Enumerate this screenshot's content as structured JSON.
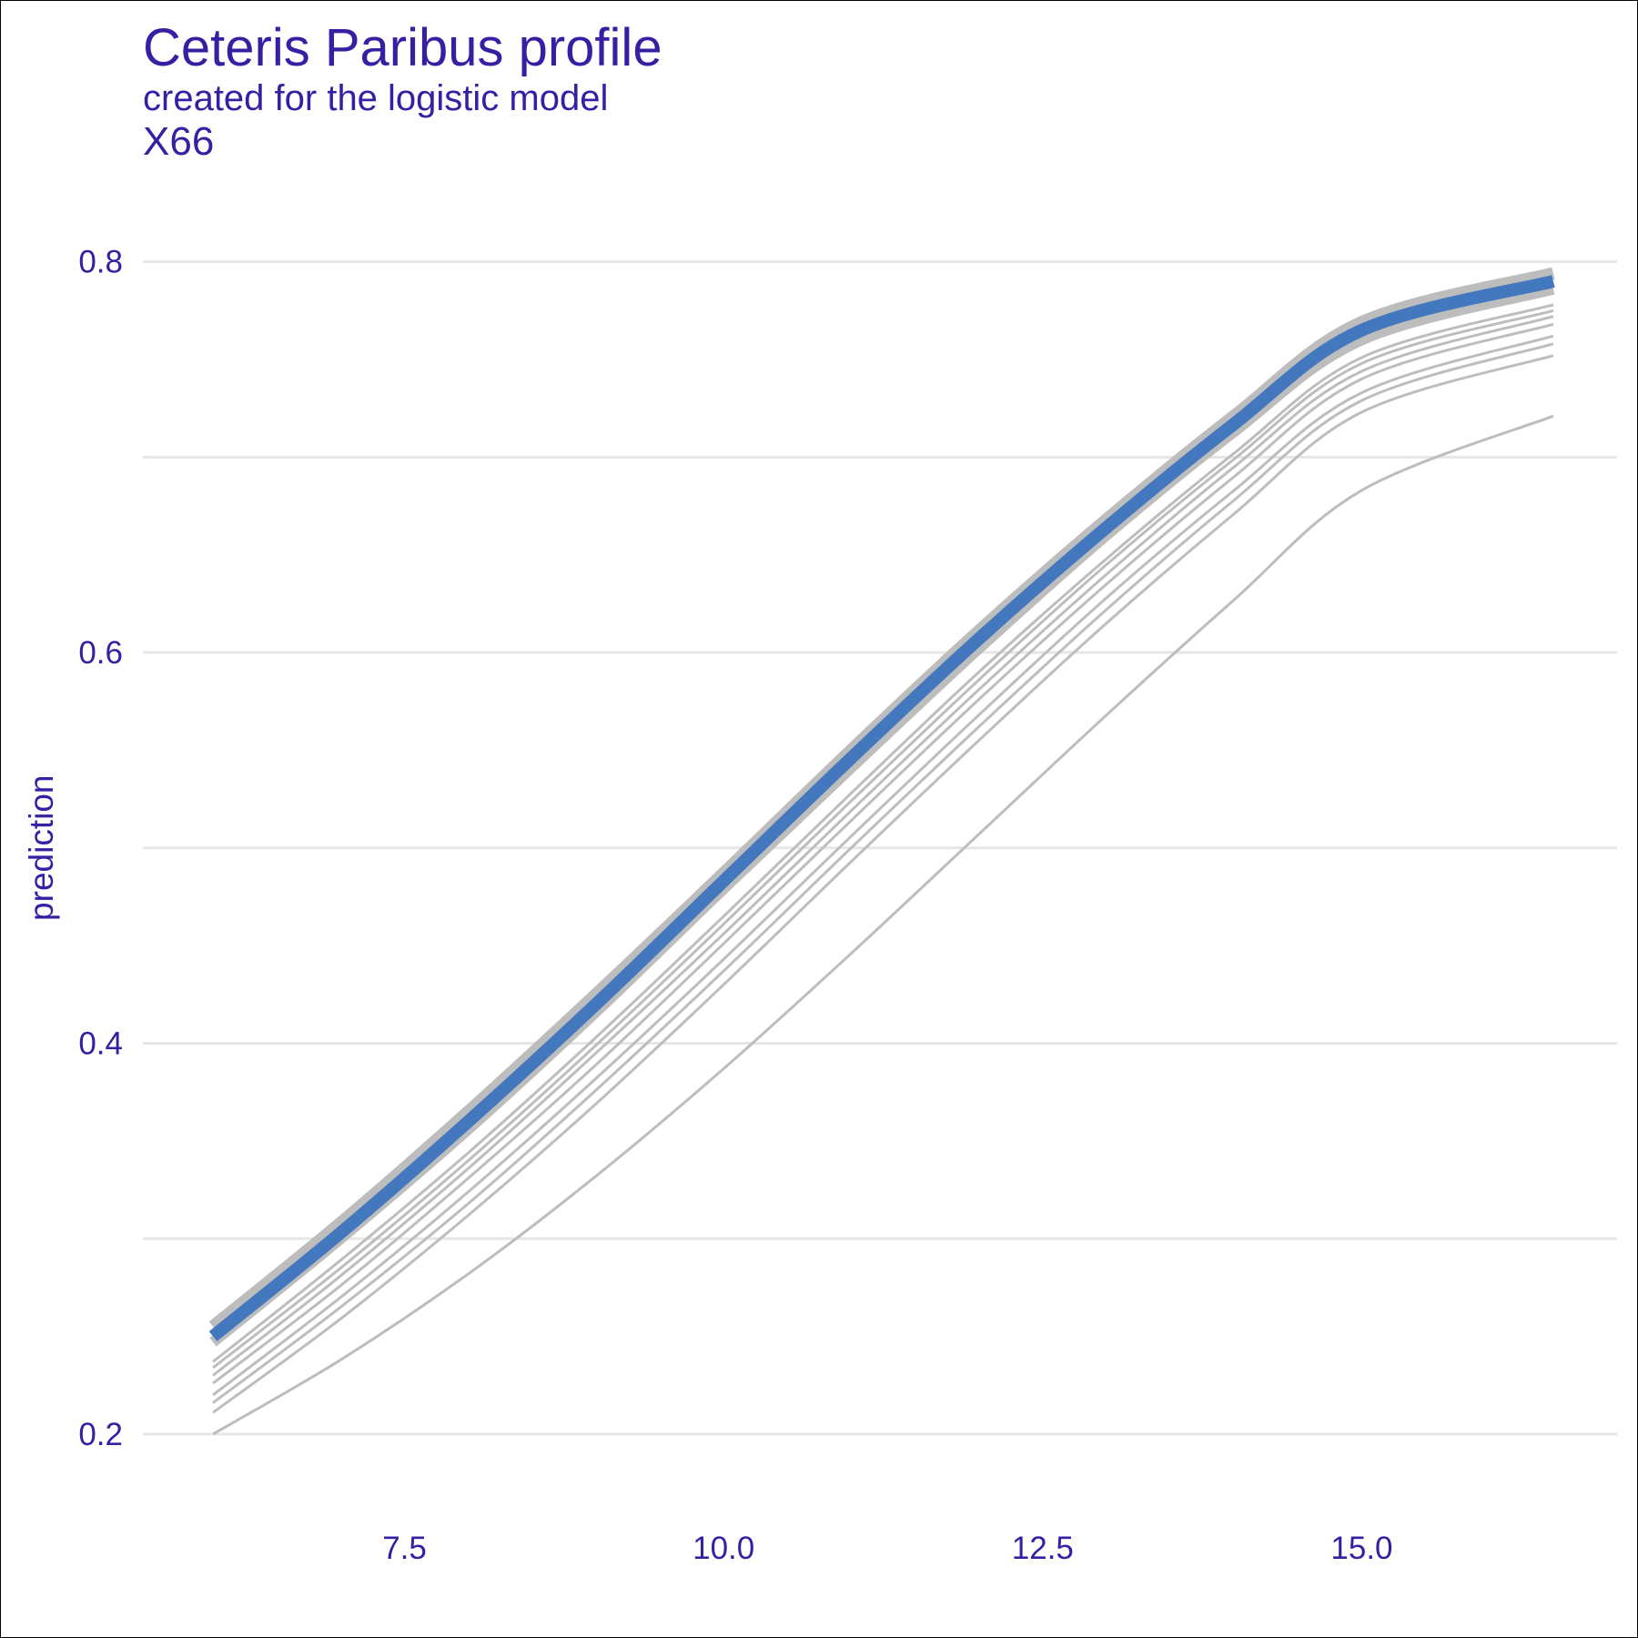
{
  "chart_data": {
    "type": "line",
    "title": "Ceteris Paribus profile",
    "subtitle": "created for the logistic model",
    "variable": "X66",
    "xlabel": "",
    "ylabel": "prediction",
    "xlim": [
      5.45,
      17.0
    ],
    "ylim": [
      0.165,
      0.845
    ],
    "x_ticks": [
      7.5,
      10.0,
      12.5,
      15.0
    ],
    "x_tick_labels": [
      "7.5",
      "10.0",
      "12.5",
      "15.0"
    ],
    "y_ticks": [
      0.2,
      0.4,
      0.6,
      0.8
    ],
    "y_tick_labels": [
      "0.2",
      "0.4",
      "0.6",
      "0.8"
    ],
    "y_minor_gridlines": [
      0.3,
      0.5,
      0.7
    ],
    "grid": "horizontal",
    "x": [
      6.0,
      7.0,
      8.0,
      9.0,
      10.0,
      11.0,
      12.0,
      13.0,
      14.0,
      15.0,
      16.5
    ],
    "series": [
      {
        "values": [
          0.255,
          0.308,
          0.365,
          0.425,
          0.487,
          0.55,
          0.611,
          0.668,
          0.721,
          0.769,
          0.794
        ],
        "width": 14
      },
      {
        "values": [
          0.247,
          0.3,
          0.356,
          0.416,
          0.479,
          0.541,
          0.602,
          0.66,
          0.713,
          0.76,
          0.786
        ],
        "width": 12
      },
      {
        "values": [
          0.237,
          0.289,
          0.344,
          0.403,
          0.465,
          0.528,
          0.59,
          0.648,
          0.702,
          0.751,
          0.778
        ],
        "width": 3
      },
      {
        "values": [
          0.234,
          0.285,
          0.34,
          0.399,
          0.461,
          0.524,
          0.586,
          0.645,
          0.699,
          0.748,
          0.775
        ],
        "width": 3
      },
      {
        "values": [
          0.23,
          0.281,
          0.336,
          0.395,
          0.456,
          0.519,
          0.581,
          0.64,
          0.695,
          0.744,
          0.772
        ],
        "width": 3
      },
      {
        "values": [
          0.226,
          0.276,
          0.331,
          0.389,
          0.451,
          0.514,
          0.576,
          0.635,
          0.69,
          0.74,
          0.768
        ],
        "width": 3
      },
      {
        "values": [
          0.22,
          0.27,
          0.324,
          0.382,
          0.443,
          0.506,
          0.568,
          0.628,
          0.683,
          0.733,
          0.762
        ],
        "width": 3
      },
      {
        "values": [
          0.216,
          0.265,
          0.318,
          0.376,
          0.437,
          0.5,
          0.562,
          0.622,
          0.678,
          0.729,
          0.758
        ],
        "width": 3
      },
      {
        "values": [
          0.211,
          0.259,
          0.312,
          0.369,
          0.43,
          0.493,
          0.555,
          0.615,
          0.671,
          0.723,
          0.752
        ],
        "width": 3
      },
      {
        "values": [
          0.2,
          0.238,
          0.282,
          0.332,
          0.387,
          0.446,
          0.507,
          0.568,
          0.627,
          0.683,
          0.721
        ],
        "width": 3
      }
    ],
    "highlight": {
      "values": [
        0.25,
        0.303,
        0.36,
        0.42,
        0.483,
        0.546,
        0.607,
        0.664,
        0.717,
        0.765,
        0.79
      ],
      "width": 14
    },
    "colors": {
      "text": "#371ea3",
      "profiles": "#bdbdbd",
      "highlight": "#4378bf",
      "grid": "#e6e6e6"
    }
  }
}
